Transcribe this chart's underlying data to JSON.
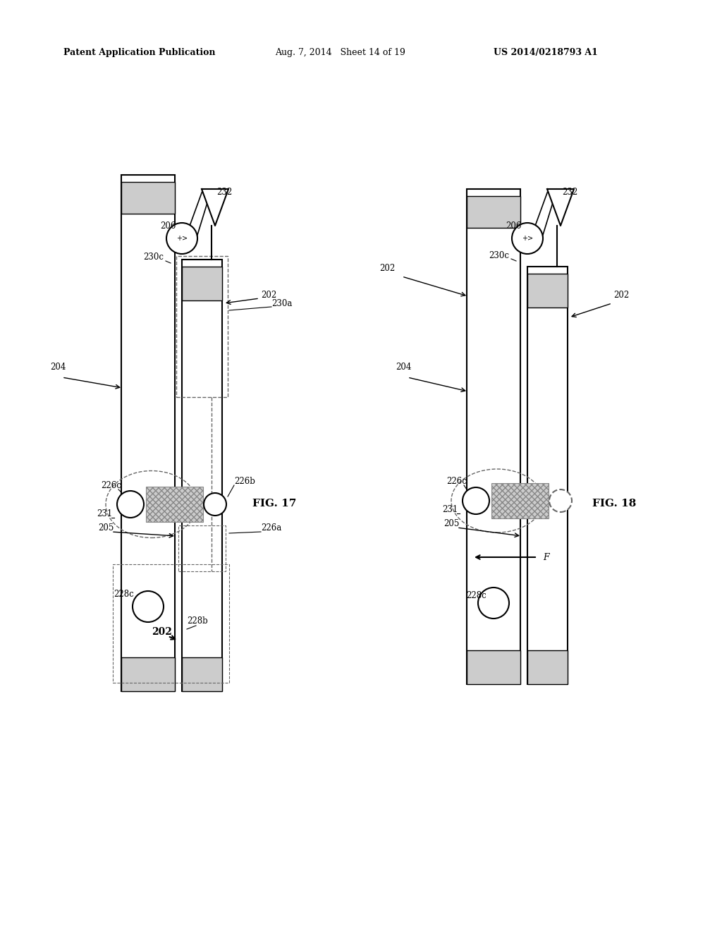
{
  "header_left": "Patent Application Publication",
  "header_mid": "Aug. 7, 2014   Sheet 14 of 19",
  "header_right": "US 2014/0218793 A1",
  "fig17_label": "FIG. 17",
  "fig18_label": "FIG. 18",
  "bg_color": "#ffffff",
  "line_color": "#000000",
  "dash_color": "#666666"
}
